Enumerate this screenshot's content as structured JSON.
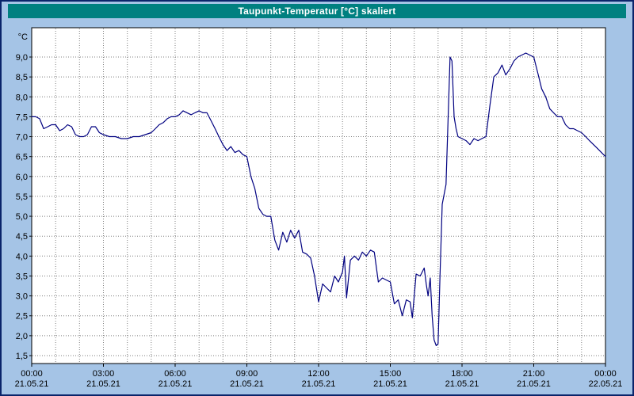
{
  "window": {
    "title": "Taupunkt-Temperatur [°C] skaliert"
  },
  "colors": {
    "background": "#a5c4e6",
    "window_border": "#0a246a",
    "titlebar_bg": "#008080",
    "titlebar_text": "#ffffff",
    "plot_bg": "#ffffff",
    "plot_border": "#000000",
    "grid": "#7f7f7f",
    "axis_text": "#000000",
    "line": "#000080"
  },
  "chart_data": {
    "type": "line",
    "title": "Taupunkt-Temperatur [°C] skaliert",
    "xlabel": "",
    "ylabel": "°C",
    "ylim": [
      1.5,
      9.0
    ],
    "ytick_step": 0.5,
    "ytick_labels": [
      "9,0",
      "8,5",
      "8,0",
      "7,5",
      "7,0",
      "6,5",
      "6,0",
      "5,5",
      "5,0",
      "4,5",
      "4,0",
      "3,5",
      "3,0",
      "2,5",
      "2,0",
      "1,5"
    ],
    "xlim_hours": [
      0,
      24
    ],
    "grid": "dotted; vertical each hour, horizontal each 0.5 °C",
    "legend_position": "none",
    "xticks": [
      {
        "hour": 0,
        "time": "00:00",
        "date": "21.05.21"
      },
      {
        "hour": 3,
        "time": "03:00",
        "date": "21.05.21"
      },
      {
        "hour": 6,
        "time": "06:00",
        "date": "21.05.21"
      },
      {
        "hour": 9,
        "time": "09:00",
        "date": "21.05.21"
      },
      {
        "hour": 12,
        "time": "12:00",
        "date": "21.05.21"
      },
      {
        "hour": 15,
        "time": "15:00",
        "date": "21.05.21"
      },
      {
        "hour": 18,
        "time": "18:00",
        "date": "21.05.21"
      },
      {
        "hour": 21,
        "time": "21:00",
        "date": "21.05.21"
      },
      {
        "hour": 24,
        "time": "00:00",
        "date": "22.05.21"
      }
    ],
    "series": [
      {
        "name": "taupunkt",
        "color": "#000080",
        "points": [
          [
            0,
            7.5
          ],
          [
            0.17,
            7.5
          ],
          [
            0.33,
            7.45
          ],
          [
            0.5,
            7.2
          ],
          [
            0.67,
            7.25
          ],
          [
            0.83,
            7.3
          ],
          [
            1,
            7.3
          ],
          [
            1.17,
            7.15
          ],
          [
            1.33,
            7.2
          ],
          [
            1.5,
            7.3
          ],
          [
            1.67,
            7.25
          ],
          [
            1.83,
            7.05
          ],
          [
            2,
            7.0
          ],
          [
            2.17,
            7.0
          ],
          [
            2.33,
            7.05
          ],
          [
            2.5,
            7.25
          ],
          [
            2.67,
            7.25
          ],
          [
            2.83,
            7.1
          ],
          [
            3,
            7.05
          ],
          [
            3.25,
            7.0
          ],
          [
            3.5,
            7.0
          ],
          [
            3.75,
            6.95
          ],
          [
            4,
            6.95
          ],
          [
            4.25,
            7.0
          ],
          [
            4.5,
            7.0
          ],
          [
            4.75,
            7.05
          ],
          [
            5,
            7.1
          ],
          [
            5.17,
            7.2
          ],
          [
            5.33,
            7.3
          ],
          [
            5.5,
            7.35
          ],
          [
            5.67,
            7.45
          ],
          [
            5.83,
            7.5
          ],
          [
            6,
            7.5
          ],
          [
            6.17,
            7.55
          ],
          [
            6.33,
            7.65
          ],
          [
            6.5,
            7.6
          ],
          [
            6.67,
            7.55
          ],
          [
            6.83,
            7.6
          ],
          [
            7,
            7.65
          ],
          [
            7.17,
            7.6
          ],
          [
            7.33,
            7.6
          ],
          [
            7.5,
            7.4
          ],
          [
            7.67,
            7.2
          ],
          [
            7.83,
            7.0
          ],
          [
            8,
            6.8
          ],
          [
            8.17,
            6.65
          ],
          [
            8.33,
            6.75
          ],
          [
            8.5,
            6.6
          ],
          [
            8.67,
            6.65
          ],
          [
            8.83,
            6.55
          ],
          [
            9,
            6.5
          ],
          [
            9.17,
            6.0
          ],
          [
            9.33,
            5.7
          ],
          [
            9.5,
            5.2
          ],
          [
            9.67,
            5.05
          ],
          [
            9.83,
            5.0
          ],
          [
            10,
            5.0
          ],
          [
            10.17,
            4.4
          ],
          [
            10.33,
            4.15
          ],
          [
            10.5,
            4.6
          ],
          [
            10.67,
            4.35
          ],
          [
            10.83,
            4.65
          ],
          [
            11,
            4.45
          ],
          [
            11.17,
            4.65
          ],
          [
            11.33,
            4.1
          ],
          [
            11.5,
            4.05
          ],
          [
            11.67,
            3.95
          ],
          [
            11.83,
            3.5
          ],
          [
            12,
            2.85
          ],
          [
            12.17,
            3.3
          ],
          [
            12.33,
            3.2
          ],
          [
            12.5,
            3.1
          ],
          [
            12.67,
            3.5
          ],
          [
            12.83,
            3.35
          ],
          [
            13,
            3.6
          ],
          [
            13.08,
            4.0
          ],
          [
            13.17,
            2.95
          ],
          [
            13.33,
            3.9
          ],
          [
            13.5,
            4.0
          ],
          [
            13.67,
            3.9
          ],
          [
            13.83,
            4.1
          ],
          [
            14,
            4.0
          ],
          [
            14.17,
            4.15
          ],
          [
            14.33,
            4.1
          ],
          [
            14.5,
            3.35
          ],
          [
            14.67,
            3.45
          ],
          [
            14.83,
            3.4
          ],
          [
            15,
            3.35
          ],
          [
            15.17,
            2.8
          ],
          [
            15.33,
            2.9
          ],
          [
            15.5,
            2.5
          ],
          [
            15.67,
            2.9
          ],
          [
            15.83,
            2.85
          ],
          [
            15.92,
            2.45
          ],
          [
            16,
            3.0
          ],
          [
            16.08,
            3.55
          ],
          [
            16.25,
            3.5
          ],
          [
            16.42,
            3.7
          ],
          [
            16.5,
            3.3
          ],
          [
            16.58,
            3.0
          ],
          [
            16.67,
            3.45
          ],
          [
            16.75,
            2.5
          ],
          [
            16.83,
            1.9
          ],
          [
            16.92,
            1.75
          ],
          [
            17,
            1.8
          ],
          [
            17.08,
            3.5
          ],
          [
            17.17,
            5.3
          ],
          [
            17.25,
            5.55
          ],
          [
            17.33,
            5.8
          ],
          [
            17.42,
            7.5
          ],
          [
            17.5,
            9.0
          ],
          [
            17.58,
            8.9
          ],
          [
            17.67,
            7.5
          ],
          [
            17.75,
            7.2
          ],
          [
            17.83,
            7.0
          ],
          [
            18,
            6.95
          ],
          [
            18.17,
            6.9
          ],
          [
            18.33,
            6.8
          ],
          [
            18.5,
            6.95
          ],
          [
            18.67,
            6.9
          ],
          [
            18.83,
            6.95
          ],
          [
            19,
            7.0
          ],
          [
            19.17,
            7.8
          ],
          [
            19.33,
            8.5
          ],
          [
            19.5,
            8.6
          ],
          [
            19.67,
            8.8
          ],
          [
            19.83,
            8.55
          ],
          [
            20,
            8.7
          ],
          [
            20.17,
            8.9
          ],
          [
            20.33,
            9.0
          ],
          [
            20.5,
            9.05
          ],
          [
            20.67,
            9.1
          ],
          [
            20.83,
            9.05
          ],
          [
            21,
            9.0
          ],
          [
            21.17,
            8.6
          ],
          [
            21.33,
            8.2
          ],
          [
            21.5,
            8.0
          ],
          [
            21.67,
            7.7
          ],
          [
            21.83,
            7.6
          ],
          [
            22,
            7.5
          ],
          [
            22.17,
            7.5
          ],
          [
            22.33,
            7.3
          ],
          [
            22.5,
            7.2
          ],
          [
            22.67,
            7.2
          ],
          [
            22.83,
            7.15
          ],
          [
            23,
            7.1
          ],
          [
            23.17,
            7.0
          ],
          [
            23.33,
            6.9
          ],
          [
            23.5,
            6.8
          ],
          [
            23.67,
            6.7
          ],
          [
            23.83,
            6.6
          ],
          [
            24,
            6.5
          ]
        ]
      }
    ]
  }
}
